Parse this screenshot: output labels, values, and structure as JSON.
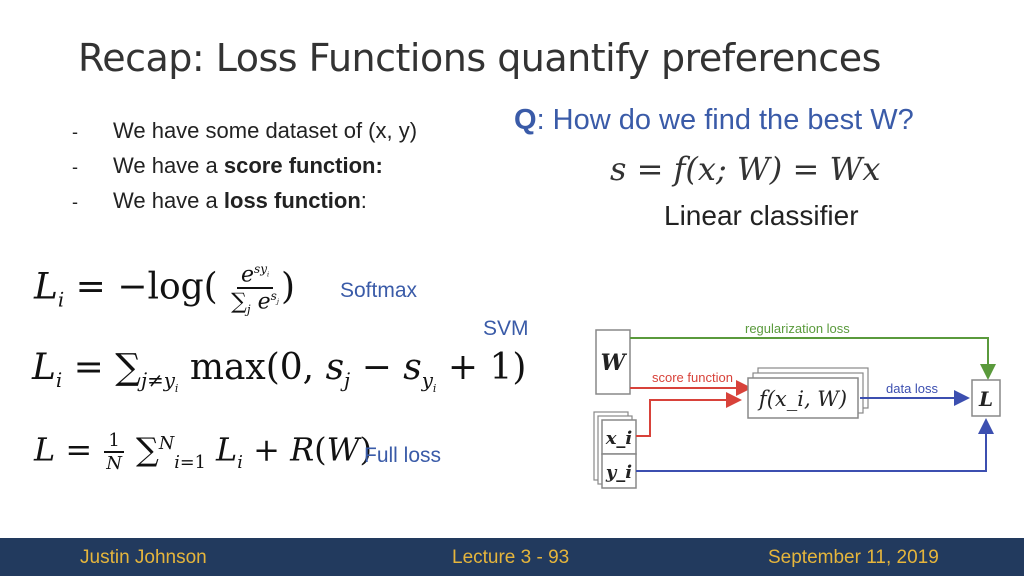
{
  "slide": {
    "title": "Recap: Loss Functions quantify preferences",
    "bullets": [
      {
        "dash": "-",
        "prefix": "We have some dataset of (x, y)",
        "bold": "",
        "suffix": ""
      },
      {
        "dash": "-",
        "prefix": "We have a ",
        "bold": "score function:",
        "suffix": ""
      },
      {
        "dash": "-",
        "prefix": "We have a ",
        "bold": "loss function",
        "suffix": ":"
      }
    ],
    "question": {
      "label": "Q",
      "text": ": How do we find the best W?"
    },
    "score_equation": "s = f(x; W) = Wx",
    "classifier_label": "Linear classifier",
    "loss_labels": {
      "softmax": "Softmax",
      "svm": "SVM",
      "full": "Full loss"
    },
    "diagram": {
      "w_box": "W",
      "score_box": "f(x_i, W)",
      "x_box": "x_i",
      "y_box": "y_i",
      "l_box": "L",
      "regularization_label": "regularization loss",
      "score_function_label": "score function",
      "data_loss_label": "data loss",
      "colors": {
        "regularization": "#5a9a3c",
        "score": "#d8423a",
        "data": "#3c4fb0"
      }
    }
  },
  "footer": {
    "author": "Justin Johnson",
    "lecture": "Lecture 3 - 93",
    "date": "September 11, 2019",
    "background": "#223a5e",
    "text_color": "#e5b53c"
  }
}
